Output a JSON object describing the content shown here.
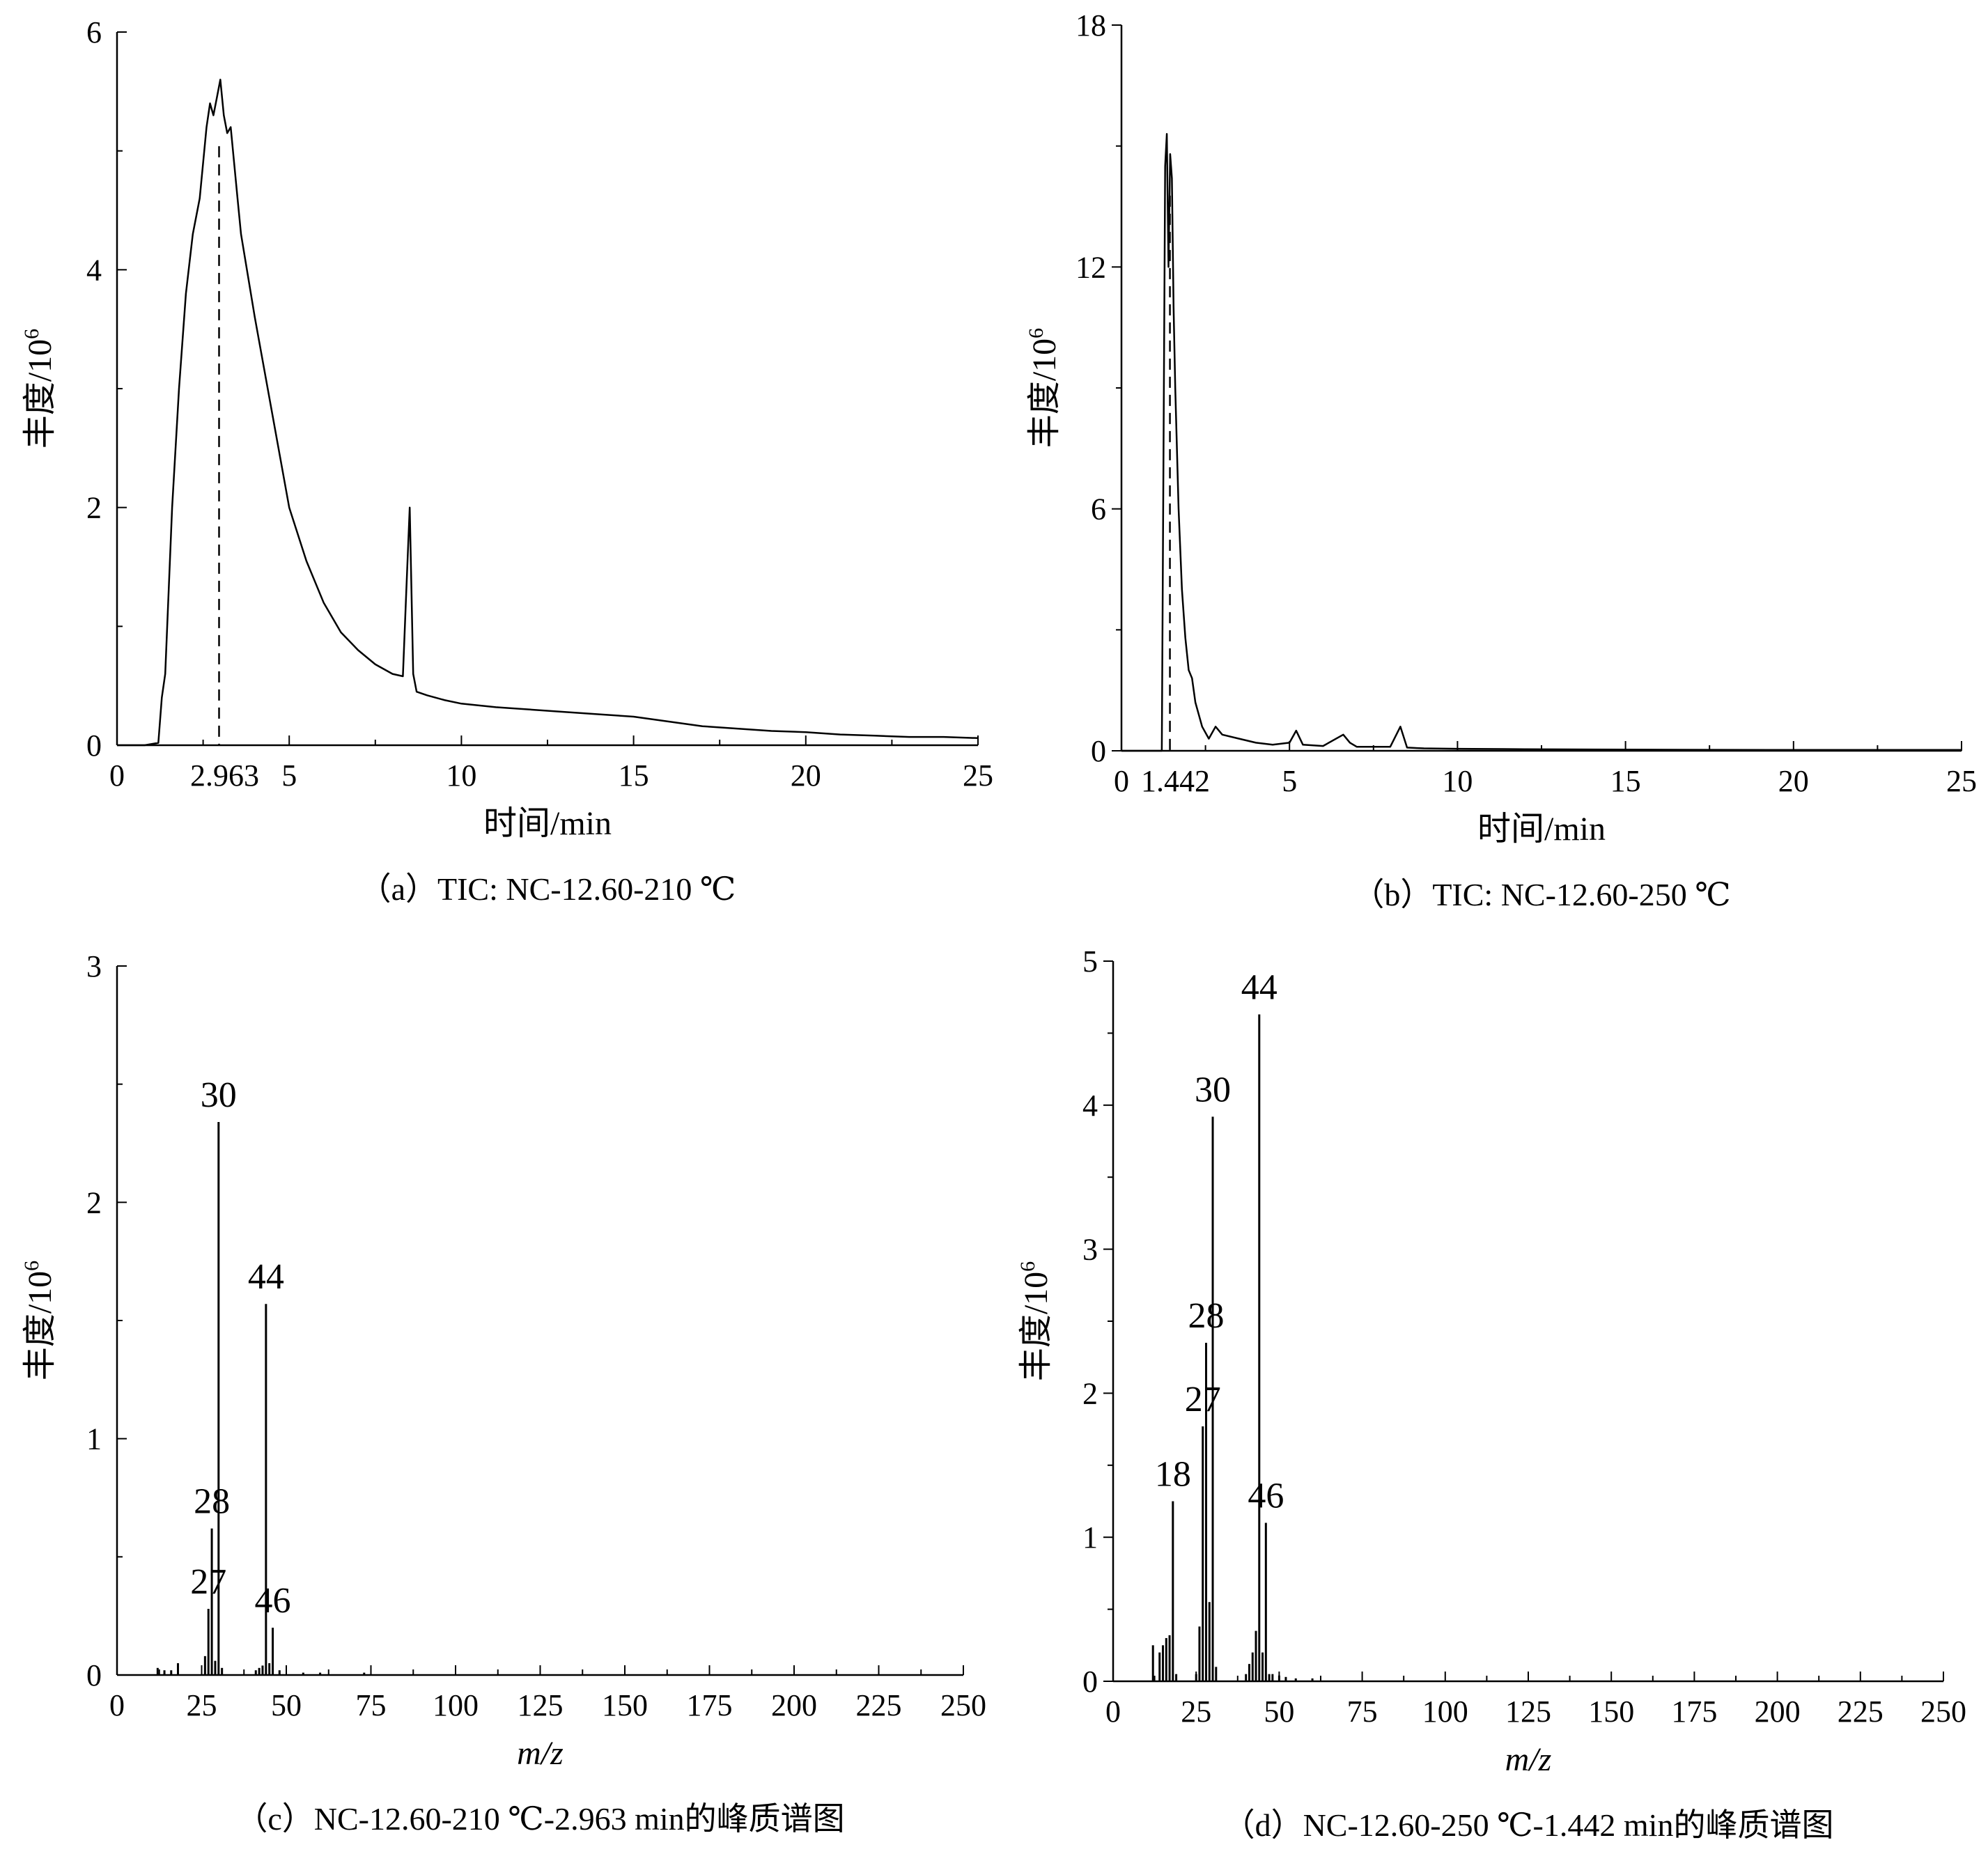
{
  "chart_data": [
    {
      "id": "a",
      "type": "line",
      "caption": "（a）TIC: NC-12.60-210 ℃",
      "xlabel": "时间/min",
      "ylabel_main": "丰度/10",
      "ylabel_sup": "6",
      "xlim": [
        0,
        25
      ],
      "ylim": [
        0,
        6
      ],
      "xticks": [
        0,
        5,
        10,
        15,
        20,
        25
      ],
      "yticks": [
        0,
        2,
        4,
        6
      ],
      "marker": {
        "x": 2.963,
        "label": "2.963"
      },
      "x": [
        0.0,
        0.8,
        1.2,
        1.3,
        1.4,
        1.6,
        1.8,
        2.0,
        2.2,
        2.4,
        2.5,
        2.6,
        2.7,
        2.8,
        2.9,
        3.0,
        3.1,
        3.2,
        3.3,
        3.4,
        3.5,
        3.6,
        4.0,
        4.5,
        5.0,
        5.5,
        6.0,
        6.5,
        7.0,
        7.5,
        8.0,
        8.3,
        8.4,
        8.5,
        8.6,
        8.7,
        9.0,
        9.5,
        10.0,
        11.0,
        12.0,
        13.0,
        14.0,
        15.0,
        16.0,
        17.0,
        18.0,
        19.0,
        20.0,
        21.0,
        22.0,
        23.0,
        24.0,
        25.0
      ],
      "y": [
        0.0,
        0.0,
        0.02,
        0.4,
        0.6,
        2.0,
        3.0,
        3.8,
        4.3,
        4.6,
        4.9,
        5.2,
        5.4,
        5.3,
        5.45,
        5.6,
        5.3,
        5.15,
        5.2,
        4.9,
        4.6,
        4.3,
        3.6,
        2.8,
        2.0,
        1.55,
        1.2,
        0.95,
        0.8,
        0.68,
        0.6,
        0.58,
        1.3,
        2.0,
        0.6,
        0.45,
        0.42,
        0.38,
        0.35,
        0.32,
        0.3,
        0.28,
        0.26,
        0.24,
        0.2,
        0.16,
        0.14,
        0.12,
        0.11,
        0.09,
        0.08,
        0.07,
        0.07,
        0.06
      ]
    },
    {
      "id": "b",
      "type": "line",
      "caption": "（b）TIC: NC-12.60-250 ℃",
      "xlabel": "时间/min",
      "ylabel_main": "丰度/10",
      "ylabel_sup": "6",
      "xlim": [
        0,
        25
      ],
      "ylim": [
        0,
        18
      ],
      "xticks": [
        0,
        5,
        10,
        15,
        20,
        25
      ],
      "yticks": [
        0,
        6,
        12,
        18
      ],
      "marker": {
        "x": 1.442,
        "label": "1.442"
      },
      "x": [
        0.0,
        1.2,
        1.3,
        1.35,
        1.4,
        1.45,
        1.5,
        1.55,
        1.6,
        1.7,
        1.8,
        1.9,
        2.0,
        2.1,
        2.2,
        2.4,
        2.6,
        2.8,
        3.0,
        3.5,
        4.0,
        4.5,
        5.0,
        5.2,
        5.4,
        6.0,
        6.6,
        6.8,
        7.0,
        8.0,
        8.3,
        8.5,
        9.0,
        10.0,
        12.0,
        15.0,
        20.0,
        25.0
      ],
      "y": [
        0.0,
        0.0,
        14.5,
        15.3,
        12.0,
        14.8,
        14.2,
        11.0,
        9.0,
        6.0,
        4.0,
        2.8,
        2.0,
        1.8,
        1.2,
        0.6,
        0.3,
        0.6,
        0.4,
        0.3,
        0.2,
        0.15,
        0.2,
        0.5,
        0.15,
        0.12,
        0.4,
        0.2,
        0.1,
        0.1,
        0.6,
        0.08,
        0.06,
        0.05,
        0.04,
        0.03,
        0.02,
        0.02
      ]
    },
    {
      "id": "c",
      "type": "bar",
      "caption": "（c）NC-12.60-210 ℃-2.963 min的峰质谱图",
      "xlabel": "m/z",
      "ylabel_main": "丰度/10",
      "ylabel_sup": "6",
      "xlim": [
        0,
        250
      ],
      "ylim": [
        0,
        3
      ],
      "xticks": [
        0,
        25,
        50,
        75,
        100,
        125,
        150,
        175,
        200,
        225,
        250
      ],
      "yticks": [
        0,
        1,
        2,
        3
      ],
      "peaks": [
        {
          "mz": 12,
          "value": 0.03
        },
        {
          "mz": 14,
          "value": 0.02
        },
        {
          "mz": 16,
          "value": 0.02
        },
        {
          "mz": 18,
          "value": 0.05
        },
        {
          "mz": 26,
          "value": 0.08
        },
        {
          "mz": 27,
          "value": 0.28,
          "label": "27"
        },
        {
          "mz": 28,
          "value": 0.62,
          "label": "28"
        },
        {
          "mz": 29,
          "value": 0.06
        },
        {
          "mz": 30,
          "value": 2.34,
          "label": "30"
        },
        {
          "mz": 31,
          "value": 0.03
        },
        {
          "mz": 41,
          "value": 0.02
        },
        {
          "mz": 42,
          "value": 0.03
        },
        {
          "mz": 43,
          "value": 0.04
        },
        {
          "mz": 44,
          "value": 1.57,
          "label": "44"
        },
        {
          "mz": 45,
          "value": 0.05
        },
        {
          "mz": 46,
          "value": 0.2,
          "label": "46"
        },
        {
          "mz": 48,
          "value": 0.02
        },
        {
          "mz": 55,
          "value": 0.01
        },
        {
          "mz": 60,
          "value": 0.01
        },
        {
          "mz": 73,
          "value": 0.01
        }
      ]
    },
    {
      "id": "d",
      "type": "bar",
      "caption": "（d）NC-12.60-250 ℃-1.442 min的峰质谱图",
      "xlabel": "m/z",
      "ylabel_main": "丰度/10",
      "ylabel_sup": "6",
      "xlim": [
        0,
        250
      ],
      "ylim": [
        0,
        5
      ],
      "xticks": [
        0,
        25,
        50,
        75,
        100,
        125,
        150,
        175,
        200,
        225,
        250
      ],
      "yticks": [
        0,
        1,
        2,
        3,
        4,
        5
      ],
      "peaks": [
        {
          "mz": 12,
          "value": 0.25
        },
        {
          "mz": 14,
          "value": 0.2
        },
        {
          "mz": 15,
          "value": 0.25
        },
        {
          "mz": 16,
          "value": 0.3
        },
        {
          "mz": 17,
          "value": 0.32
        },
        {
          "mz": 18,
          "value": 1.25,
          "label": "18"
        },
        {
          "mz": 19,
          "value": 0.05
        },
        {
          "mz": 25,
          "value": 0.05
        },
        {
          "mz": 26,
          "value": 0.38
        },
        {
          "mz": 27,
          "value": 1.77,
          "label": "27"
        },
        {
          "mz": 28,
          "value": 2.35,
          "label": "28"
        },
        {
          "mz": 29,
          "value": 0.55
        },
        {
          "mz": 30,
          "value": 3.92,
          "label": "30"
        },
        {
          "mz": 31,
          "value": 0.1
        },
        {
          "mz": 40,
          "value": 0.05
        },
        {
          "mz": 41,
          "value": 0.12
        },
        {
          "mz": 42,
          "value": 0.2
        },
        {
          "mz": 43,
          "value": 0.35
        },
        {
          "mz": 44,
          "value": 4.63,
          "label": "44"
        },
        {
          "mz": 45,
          "value": 0.2
        },
        {
          "mz": 46,
          "value": 1.1,
          "label": "46"
        },
        {
          "mz": 47,
          "value": 0.05
        },
        {
          "mz": 48,
          "value": 0.05
        },
        {
          "mz": 50,
          "value": 0.04
        },
        {
          "mz": 52,
          "value": 0.03
        },
        {
          "mz": 55,
          "value": 0.02
        },
        {
          "mz": 60,
          "value": 0.02
        }
      ]
    }
  ]
}
